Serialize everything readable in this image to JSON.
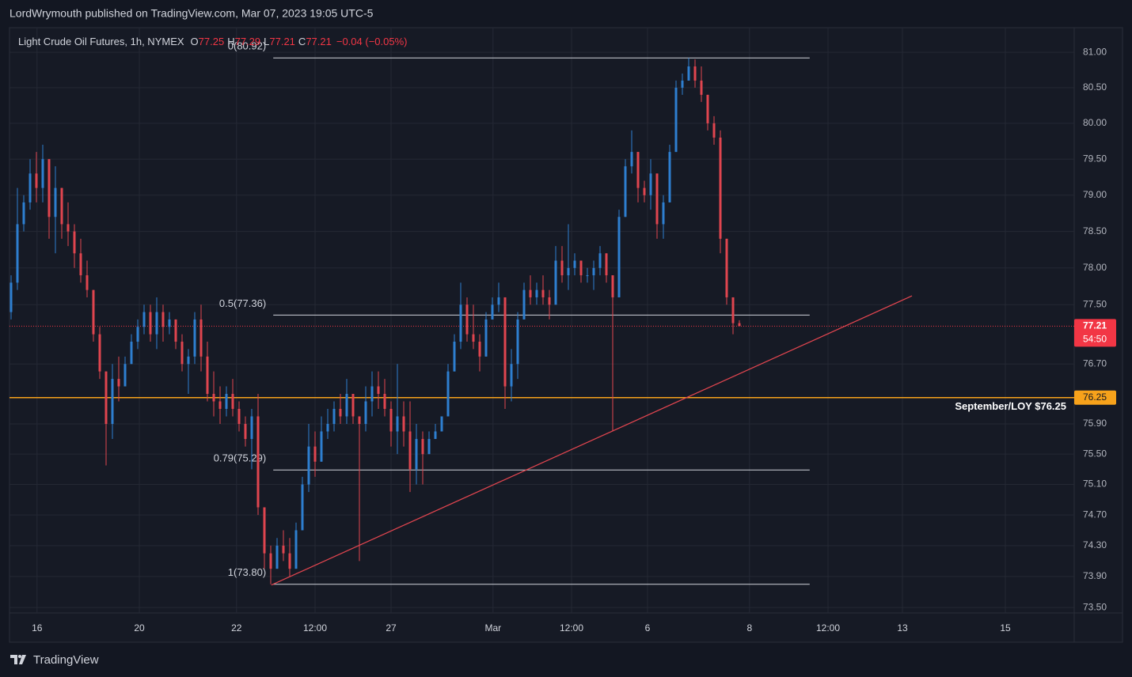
{
  "header": {
    "text": "LordWrymouth published on TradingView.com, Mar 07, 2023 19:05 UTC-5"
  },
  "chart_data": {
    "type": "ohlc",
    "title": "Light Crude Oil Futures, 1h, NYMEX",
    "legend": [
      {
        "key": "O",
        "value": 77.25
      },
      {
        "key": "H",
        "value": 77.29
      },
      {
        "key": "L",
        "value": 77.21
      },
      {
        "key": "C",
        "value": 77.21
      }
    ],
    "change": "−0.04 (−0.05%)",
    "log_scale": true,
    "grid": true,
    "ylim": [
      73.43,
      81.35
    ],
    "yticks": [
      {
        "value": 81,
        "label": "81.00"
      },
      {
        "value": 80.5,
        "label": "80.50"
      },
      {
        "value": 80,
        "label": "80.00"
      },
      {
        "value": 79.5,
        "label": "79.50"
      },
      {
        "value": 79,
        "label": "79.00"
      },
      {
        "value": 78.5,
        "label": "78.50"
      },
      {
        "value": 78,
        "label": "78.00"
      },
      {
        "value": 77.5,
        "label": "77.50"
      },
      {
        "value": 76.7,
        "label": "76.70"
      },
      {
        "value": 75.9,
        "label": "75.90"
      },
      {
        "value": 75.5,
        "label": "75.50"
      },
      {
        "value": 75.1,
        "label": "75.10"
      },
      {
        "value": 74.7,
        "label": "74.70"
      },
      {
        "value": 74.3,
        "label": "74.30"
      },
      {
        "value": 73.9,
        "label": "73.90"
      },
      {
        "value": 73.5,
        "label": "73.50"
      }
    ],
    "xlim": [
      -0.25,
      167.875
    ],
    "xticks": [
      {
        "value": 4.1,
        "label": "16"
      },
      {
        "value": 20.25,
        "label": "20"
      },
      {
        "value": 35.6,
        "label": "22"
      },
      {
        "value": 48,
        "label": "12:00"
      },
      {
        "value": 60,
        "label": "27"
      },
      {
        "value": 76.1,
        "label": "Mar"
      },
      {
        "value": 88.5,
        "label": "12:00"
      },
      {
        "value": 100.5,
        "label": "6"
      },
      {
        "value": 116.6,
        "label": "8"
      },
      {
        "value": 129,
        "label": "12:00"
      },
      {
        "value": 140.75,
        "label": "13"
      },
      {
        "value": 157,
        "label": "15"
      }
    ],
    "up_color": "#2e7fd0",
    "down_color": "#e0454f",
    "open": [
      77.4,
      77.8,
      78.6,
      78.9,
      79.3,
      79.1,
      79.5,
      78.7,
      79.1,
      78.6,
      78.5,
      78.2,
      77.9,
      77.7,
      77.1,
      76.6,
      75.9,
      76.5,
      76.4,
      76.7,
      77.0,
      77.2,
      77.4,
      77.1,
      77.4,
      77.2,
      77.3,
      77.0,
      76.7,
      76.8,
      77.3,
      76.8,
      76.3,
      76.2,
      76.1,
      76.3,
      76.1,
      75.9,
      75.7,
      76.0,
      74.8,
      74.2,
      74.0,
      74.3,
      74.2,
      74.0,
      74.5,
      75.1,
      75.6,
      75.4,
      75.8,
      75.9,
      76.1,
      76.0,
      76.3,
      76.0,
      75.9,
      76.2,
      76.4,
      76.3,
      76.1,
      75.8,
      76.0,
      75.8,
      75.3,
      75.7,
      75.5,
      75.7,
      75.8,
      76.0,
      76.6,
      77.0,
      77.5,
      77.1,
      77.0,
      76.8,
      77.3,
      77.5,
      77.6,
      76.4,
      76.7,
      77.3,
      77.7,
      77.6,
      77.7,
      77.6,
      77.5,
      78.1,
      77.9,
      78.0,
      78.1,
      77.9,
      77.9,
      78.0,
      78.2,
      77.9,
      77.6,
      78.7,
      79.4,
      79.6,
      79.1,
      79.0,
      79.3,
      78.6,
      78.9,
      79.6,
      80.5,
      80.6,
      80.8,
      80.6,
      80.4,
      80.0,
      79.8,
      78.4,
      77.6,
      77.25
    ],
    "high": [
      77.9,
      79.1,
      79.0,
      79.5,
      79.6,
      79.7,
      79.5,
      79.4,
      79.1,
      78.9,
      78.6,
      78.4,
      78.1,
      77.7,
      77.2,
      76.6,
      76.7,
      76.8,
      76.8,
      77.1,
      77.3,
      77.5,
      77.5,
      77.6,
      77.5,
      77.4,
      77.3,
      77.1,
      76.9,
      77.4,
      77.5,
      77.0,
      76.6,
      76.4,
      76.4,
      76.5,
      76.2,
      76.0,
      76.1,
      76.3,
      74.8,
      74.3,
      74.4,
      74.5,
      74.4,
      74.6,
      75.2,
      75.9,
      75.8,
      76.0,
      76.1,
      76.2,
      76.3,
      76.5,
      76.3,
      76.0,
      76.4,
      76.6,
      76.6,
      76.5,
      76.2,
      76.7,
      76.2,
      76.2,
      75.9,
      75.8,
      75.8,
      75.9,
      76.0,
      76.7,
      77.1,
      77.8,
      77.6,
      77.5,
      77.1,
      77.4,
      77.6,
      77.8,
      77.6,
      76.9,
      77.4,
      77.8,
      77.9,
      77.8,
      77.9,
      77.7,
      78.3,
      78.3,
      78.6,
      78.2,
      78.1,
      78.0,
      78.1,
      78.3,
      78.2,
      77.9,
      78.8,
      79.5,
      79.9,
      79.6,
      79.2,
      79.5,
      79.3,
      79.0,
      79.7,
      80.6,
      80.7,
      80.92,
      80.9,
      80.8,
      80.4,
      80.1,
      79.9,
      78.4,
      77.6,
      77.29
    ],
    "low": [
      77.3,
      77.7,
      78.5,
      78.8,
      78.9,
      78.9,
      78.4,
      78.2,
      78.4,
      78.3,
      78.0,
      77.8,
      77.6,
      77.0,
      76.5,
      75.35,
      75.7,
      76.2,
      76.4,
      76.7,
      76.9,
      77.1,
      77.0,
      76.9,
      77.0,
      77.1,
      76.9,
      76.6,
      76.3,
      76.7,
      76.6,
      76.2,
      76.0,
      75.9,
      76.0,
      76.0,
      75.8,
      75.6,
      75.3,
      74.7,
      74.0,
      73.8,
      74.0,
      74.1,
      73.9,
      74.0,
      74.5,
      75.0,
      75.2,
      75.4,
      75.7,
      75.8,
      75.9,
      75.9,
      75.9,
      74.1,
      75.8,
      76.0,
      76.1,
      76.0,
      75.6,
      75.5,
      75.6,
      75.0,
      75.1,
      75.1,
      75.5,
      75.7,
      75.8,
      76.0,
      76.6,
      76.9,
      77.0,
      76.9,
      76.6,
      76.8,
      77.3,
      77.4,
      76.1,
      76.2,
      76.5,
      77.3,
      77.5,
      77.5,
      77.5,
      77.3,
      77.5,
      77.8,
      77.7,
      77.9,
      77.8,
      77.8,
      77.7,
      77.9,
      77.8,
      75.8,
      77.6,
      78.7,
      79.3,
      78.9,
      78.9,
      78.8,
      78.4,
      78.4,
      78.9,
      79.6,
      80.4,
      80.6,
      80.5,
      80.3,
      79.9,
      79.7,
      78.2,
      77.5,
      77.1,
      77.21
    ],
    "close": [
      77.8,
      78.6,
      78.9,
      79.3,
      79.1,
      79.5,
      78.7,
      79.1,
      78.6,
      78.5,
      78.2,
      77.9,
      77.7,
      77.1,
      76.6,
      75.9,
      76.5,
      76.4,
      76.7,
      77.0,
      77.2,
      77.4,
      77.1,
      77.4,
      77.2,
      77.3,
      77.0,
      76.7,
      76.8,
      77.3,
      76.8,
      76.3,
      76.2,
      76.1,
      76.3,
      76.1,
      75.9,
      75.7,
      76.0,
      74.8,
      74.2,
      74.0,
      74.3,
      74.2,
      74.0,
      74.5,
      75.1,
      75.6,
      75.4,
      75.8,
      75.9,
      76.1,
      76.0,
      76.3,
      76.0,
      75.9,
      76.2,
      76.4,
      76.3,
      76.1,
      75.8,
      76.0,
      75.8,
      75.3,
      75.7,
      75.5,
      75.7,
      75.8,
      76.0,
      76.6,
      77.0,
      77.5,
      77.1,
      77.0,
      76.8,
      77.3,
      77.5,
      77.6,
      76.4,
      76.7,
      77.3,
      77.7,
      77.6,
      77.7,
      77.6,
      77.5,
      78.1,
      77.9,
      78.0,
      78.1,
      77.9,
      77.9,
      78.0,
      78.2,
      77.9,
      77.6,
      78.7,
      79.4,
      79.6,
      79.1,
      79.0,
      79.3,
      78.6,
      78.9,
      79.6,
      80.5,
      80.6,
      80.8,
      80.6,
      80.4,
      80.0,
      79.8,
      78.4,
      77.6,
      77.25,
      77.21
    ],
    "fib": {
      "x": [
        41.4,
        126.1
      ],
      "color": "#d1d4dc",
      "levels": [
        {
          "value": 80.92,
          "label": "0(80.92)"
        },
        {
          "value": 77.36,
          "label": "0.5(77.36)"
        },
        {
          "value": 75.29,
          "label": "0.79(75.29)"
        },
        {
          "value": 73.8,
          "label": "1(73.80)"
        }
      ]
    },
    "trendline": {
      "x": [
        41.1,
        142.25
      ],
      "y": [
        73.79,
        77.62
      ],
      "color": "#e0454f"
    },
    "support": {
      "value": 76.25,
      "label": "September/LOY $76.25",
      "color": "#f7a21b"
    },
    "last_price": {
      "value": 77.21,
      "countdown": "54:50",
      "color": "#f23645"
    }
  },
  "footer": {
    "brand": "TradingView"
  }
}
